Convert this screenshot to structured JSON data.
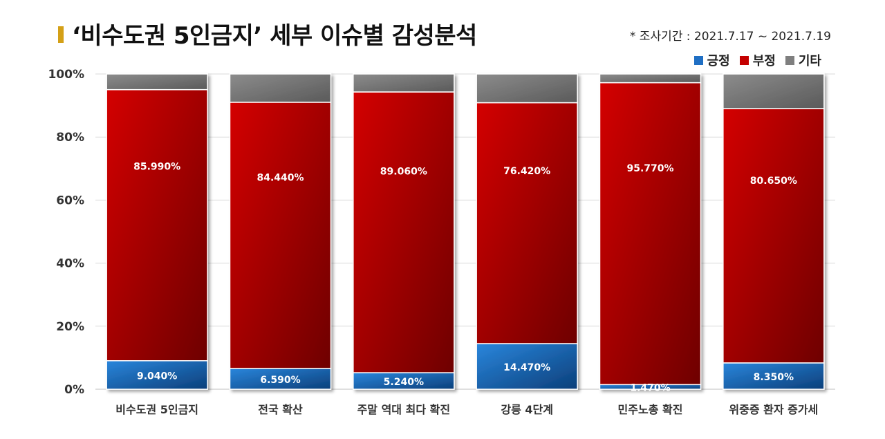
{
  "header": {
    "title": "‘비수도권 5인금지’ 세부 이슈별 감성분석",
    "period": "* 조사기간 : 2021.7.17 ~ 2021.7.19"
  },
  "colors": {
    "positive": "#1f6fc4",
    "negative": "#c40000",
    "other": "#7f7f7f"
  },
  "chart_data": {
    "type": "bar",
    "stacked": true,
    "normalized": true,
    "categories": [
      "비수도권 5인금지",
      "전국 확산",
      "주말 역대 최다 확진",
      "강릉 4단계",
      "민주노총 확진",
      "위중증 환자 증가세"
    ],
    "series": [
      {
        "name": "긍정",
        "values": [
          9.04,
          6.59,
          5.24,
          14.47,
          1.47,
          8.35
        ],
        "labels": [
          "9.040%",
          "6.590%",
          "5.240%",
          "14.470%",
          "1.470%",
          "8.350%"
        ]
      },
      {
        "name": "부정",
        "values": [
          85.99,
          84.44,
          89.06,
          76.42,
          95.77,
          80.65
        ],
        "labels": [
          "85.990%",
          "84.440%",
          "89.060%",
          "76.420%",
          "95.770%",
          "80.650%"
        ]
      },
      {
        "name": "기타",
        "values": [
          4.97,
          8.97,
          5.7,
          9.11,
          2.76,
          11.0
        ]
      }
    ],
    "yticks": [
      "0%",
      "20%",
      "40%",
      "60%",
      "80%",
      "100%"
    ],
    "ylim": [
      0,
      100
    ],
    "legend_position": "top-right",
    "grid": true
  }
}
